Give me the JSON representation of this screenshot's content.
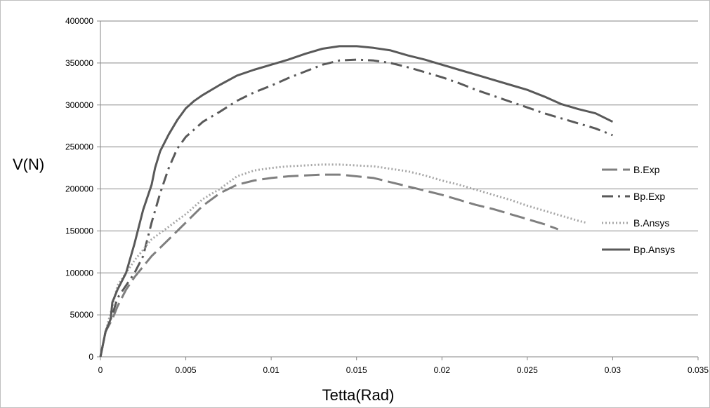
{
  "chart_data": {
    "type": "line",
    "xlabel": "Tetta(Rad)",
    "ylabel": "V(N)",
    "xlim": [
      0,
      0.035
    ],
    "ylim": [
      0,
      400000
    ],
    "x_ticks": [
      "0",
      "0.005",
      "0.01",
      "0.015",
      "0.02",
      "0.025",
      "0.03",
      "0.035"
    ],
    "y_ticks": [
      "0",
      "50000",
      "100000",
      "150000",
      "200000",
      "250000",
      "300000",
      "350000",
      "400000"
    ],
    "grid": "horizontal",
    "legend_position": "right",
    "series": [
      {
        "name": "B.Exp",
        "color": "#7f7f7f",
        "style": "long-dash",
        "points": [
          [
            0,
            0
          ],
          [
            0.0003,
            30000
          ],
          [
            0.0007,
            45000
          ],
          [
            0.001,
            60000
          ],
          [
            0.0015,
            80000
          ],
          [
            0.002,
            95000
          ],
          [
            0.003,
            120000
          ],
          [
            0.004,
            140000
          ],
          [
            0.005,
            160000
          ],
          [
            0.006,
            180000
          ],
          [
            0.007,
            195000
          ],
          [
            0.008,
            205000
          ],
          [
            0.009,
            210000
          ],
          [
            0.01,
            213000
          ],
          [
            0.011,
            215000
          ],
          [
            0.012,
            216000
          ],
          [
            0.013,
            217000
          ],
          [
            0.014,
            217000
          ],
          [
            0.015,
            215000
          ],
          [
            0.016,
            213000
          ],
          [
            0.017,
            208000
          ],
          [
            0.018,
            203000
          ],
          [
            0.019,
            198000
          ],
          [
            0.02,
            193000
          ],
          [
            0.021,
            187000
          ],
          [
            0.022,
            181000
          ],
          [
            0.023,
            176000
          ],
          [
            0.024,
            170000
          ],
          [
            0.025,
            164000
          ],
          [
            0.026,
            158000
          ],
          [
            0.0268,
            152000
          ]
        ]
      },
      {
        "name": "Bp.Exp",
        "color": "#595959",
        "style": "dash-dot",
        "points": [
          [
            0,
            0
          ],
          [
            0.0003,
            30000
          ],
          [
            0.0007,
            50000
          ],
          [
            0.001,
            70000
          ],
          [
            0.0015,
            85000
          ],
          [
            0.002,
            100000
          ],
          [
            0.0025,
            120000
          ],
          [
            0.003,
            160000
          ],
          [
            0.0035,
            195000
          ],
          [
            0.004,
            225000
          ],
          [
            0.0045,
            248000
          ],
          [
            0.005,
            262000
          ],
          [
            0.006,
            280000
          ],
          [
            0.007,
            292000
          ],
          [
            0.008,
            305000
          ],
          [
            0.009,
            315000
          ],
          [
            0.01,
            323000
          ],
          [
            0.011,
            332000
          ],
          [
            0.012,
            340000
          ],
          [
            0.013,
            348000
          ],
          [
            0.014,
            353000
          ],
          [
            0.015,
            354000
          ],
          [
            0.016,
            353000
          ],
          [
            0.017,
            350000
          ],
          [
            0.018,
            345000
          ],
          [
            0.019,
            339000
          ],
          [
            0.02,
            333000
          ],
          [
            0.021,
            326000
          ],
          [
            0.022,
            318000
          ],
          [
            0.023,
            311000
          ],
          [
            0.024,
            304000
          ],
          [
            0.025,
            297000
          ],
          [
            0.026,
            290000
          ],
          [
            0.027,
            284000
          ],
          [
            0.028,
            278000
          ],
          [
            0.029,
            272000
          ],
          [
            0.03,
            264000
          ]
        ]
      },
      {
        "name": "B.Ansys",
        "color": "#a6a6a6",
        "style": "dotted",
        "points": [
          [
            0,
            0
          ],
          [
            0.0003,
            30000
          ],
          [
            0.0007,
            60000
          ],
          [
            0.001,
            85000
          ],
          [
            0.0015,
            100000
          ],
          [
            0.002,
            115000
          ],
          [
            0.003,
            140000
          ],
          [
            0.004,
            155000
          ],
          [
            0.005,
            170000
          ],
          [
            0.006,
            188000
          ],
          [
            0.007,
            200000
          ],
          [
            0.008,
            215000
          ],
          [
            0.009,
            222000
          ],
          [
            0.01,
            225000
          ],
          [
            0.011,
            227000
          ],
          [
            0.012,
            228000
          ],
          [
            0.013,
            229000
          ],
          [
            0.014,
            229000
          ],
          [
            0.015,
            228000
          ],
          [
            0.016,
            227000
          ],
          [
            0.017,
            224000
          ],
          [
            0.018,
            221000
          ],
          [
            0.019,
            216000
          ],
          [
            0.02,
            210000
          ],
          [
            0.021,
            205000
          ],
          [
            0.022,
            199000
          ],
          [
            0.023,
            193000
          ],
          [
            0.024,
            187000
          ],
          [
            0.025,
            180000
          ],
          [
            0.026,
            174000
          ],
          [
            0.027,
            168000
          ],
          [
            0.028,
            162000
          ],
          [
            0.0284,
            160000
          ]
        ]
      },
      {
        "name": "Bp.Ansys",
        "color": "#595959",
        "style": "solid",
        "points": [
          [
            0,
            0
          ],
          [
            0.0003,
            30000
          ],
          [
            0.0006,
            45000
          ],
          [
            0.0007,
            65000
          ],
          [
            0.001,
            80000
          ],
          [
            0.0015,
            100000
          ],
          [
            0.002,
            135000
          ],
          [
            0.0025,
            175000
          ],
          [
            0.003,
            205000
          ],
          [
            0.0032,
            225000
          ],
          [
            0.0035,
            245000
          ],
          [
            0.004,
            265000
          ],
          [
            0.0045,
            282000
          ],
          [
            0.005,
            296000
          ],
          [
            0.0055,
            305000
          ],
          [
            0.006,
            312000
          ],
          [
            0.007,
            324000
          ],
          [
            0.008,
            335000
          ],
          [
            0.009,
            342000
          ],
          [
            0.01,
            348000
          ],
          [
            0.011,
            354000
          ],
          [
            0.012,
            361000
          ],
          [
            0.013,
            367000
          ],
          [
            0.014,
            370000
          ],
          [
            0.015,
            370000
          ],
          [
            0.016,
            368000
          ],
          [
            0.017,
            365000
          ],
          [
            0.018,
            359000
          ],
          [
            0.019,
            354000
          ],
          [
            0.02,
            348000
          ],
          [
            0.021,
            342000
          ],
          [
            0.022,
            336000
          ],
          [
            0.023,
            330000
          ],
          [
            0.024,
            324000
          ],
          [
            0.025,
            318000
          ],
          [
            0.026,
            310000
          ],
          [
            0.027,
            301000
          ],
          [
            0.028,
            295000
          ],
          [
            0.029,
            290000
          ],
          [
            0.03,
            280000
          ]
        ]
      }
    ]
  }
}
